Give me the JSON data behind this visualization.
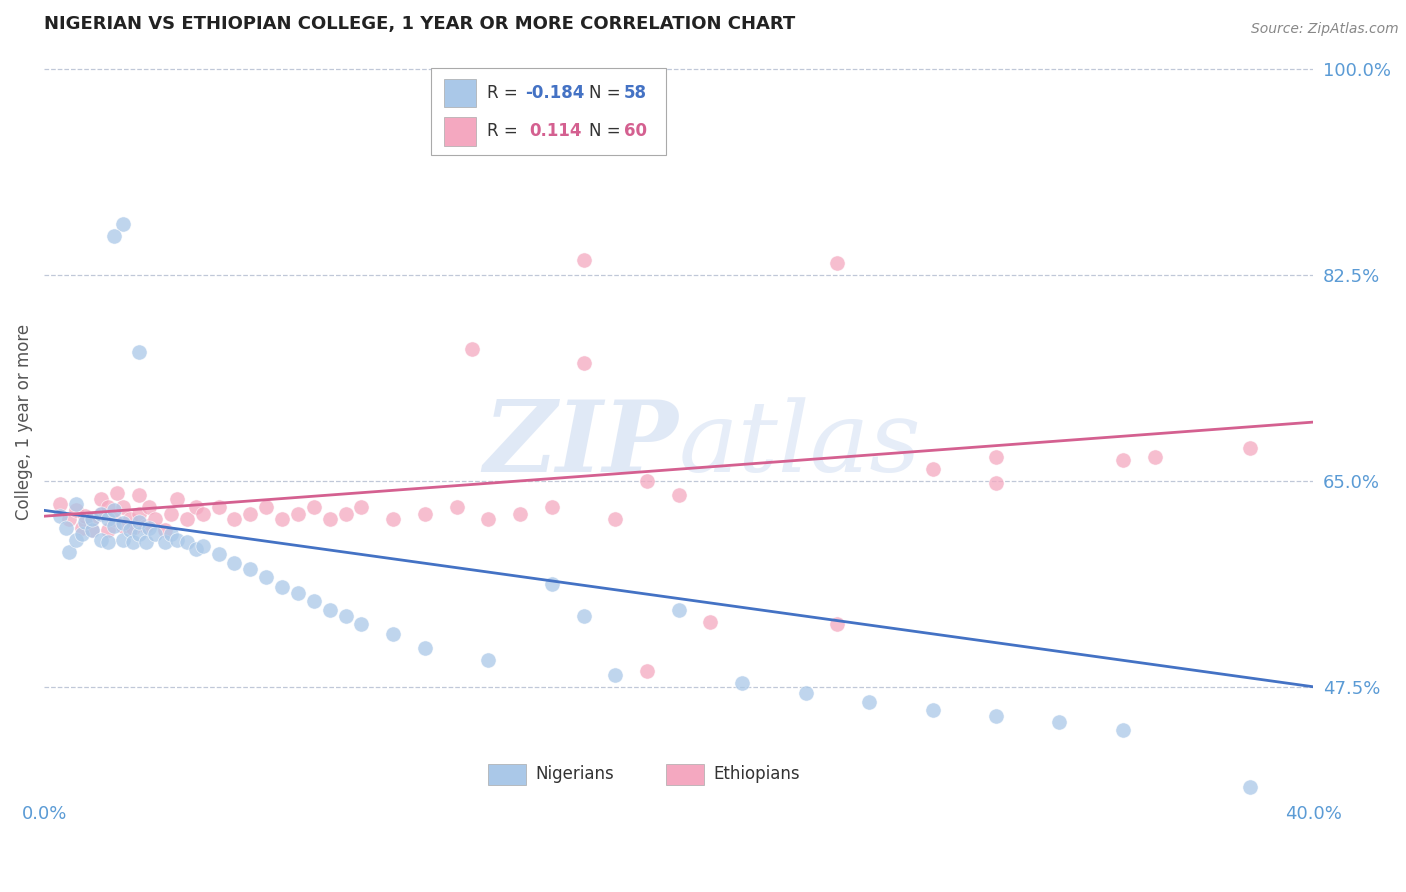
{
  "title": "NIGERIAN VS ETHIOPIAN COLLEGE, 1 YEAR OR MORE CORRELATION CHART",
  "source_text": "Source: ZipAtlas.com",
  "ylabel": "College, 1 year or more",
  "xlim": [
    0.0,
    0.4
  ],
  "ylim": [
    0.38,
    1.02
  ],
  "xtick_labels": [
    "0.0%",
    "40.0%"
  ],
  "ytick_positions": [
    1.0,
    0.825,
    0.65,
    0.475
  ],
  "ytick_labels": [
    "100.0%",
    "82.5%",
    "65.0%",
    "47.5%"
  ],
  "nigerian_color": "#aac8e8",
  "ethiopian_color": "#f4a8c0",
  "nigerian_line_color": "#4472c4",
  "ethiopian_line_color": "#d46090",
  "watermark": "ZIPatlas",
  "background_color": "#ffffff",
  "grid_color": "#c0c8d8",
  "nigerian_R": -0.184,
  "nigerian_N": 58,
  "ethiopian_R": 0.114,
  "ethiopian_N": 60,
  "legend_box_color": "#dddddd",
  "tick_color": "#5b9bd5",
  "nigerian_x": [
    0.005,
    0.007,
    0.008,
    0.01,
    0.01,
    0.012,
    0.013,
    0.015,
    0.015,
    0.018,
    0.018,
    0.02,
    0.02,
    0.022,
    0.022,
    0.025,
    0.025,
    0.027,
    0.028,
    0.03,
    0.03,
    0.032,
    0.033,
    0.035,
    0.038,
    0.04,
    0.042,
    0.045,
    0.048,
    0.05,
    0.055,
    0.06,
    0.065,
    0.07,
    0.075,
    0.08,
    0.085,
    0.09,
    0.095,
    0.1,
    0.11,
    0.12,
    0.14,
    0.16,
    0.18,
    0.2,
    0.22,
    0.24,
    0.26,
    0.28,
    0.3,
    0.32,
    0.34,
    0.17,
    0.38,
    0.025,
    0.022,
    0.03
  ],
  "nigerian_y": [
    0.62,
    0.61,
    0.59,
    0.6,
    0.63,
    0.605,
    0.615,
    0.608,
    0.618,
    0.6,
    0.622,
    0.618,
    0.598,
    0.612,
    0.625,
    0.6,
    0.614,
    0.608,
    0.598,
    0.605,
    0.615,
    0.598,
    0.61,
    0.605,
    0.598,
    0.605,
    0.6,
    0.598,
    0.592,
    0.595,
    0.588,
    0.58,
    0.575,
    0.568,
    0.56,
    0.555,
    0.548,
    0.54,
    0.535,
    0.528,
    0.52,
    0.508,
    0.498,
    0.562,
    0.485,
    0.54,
    0.478,
    0.47,
    0.462,
    0.455,
    0.45,
    0.445,
    0.438,
    0.535,
    0.39,
    0.868,
    0.858,
    0.76
  ],
  "ethiopian_x": [
    0.005,
    0.008,
    0.01,
    0.012,
    0.013,
    0.015,
    0.015,
    0.018,
    0.018,
    0.02,
    0.02,
    0.022,
    0.023,
    0.025,
    0.025,
    0.027,
    0.028,
    0.03,
    0.03,
    0.032,
    0.033,
    0.035,
    0.038,
    0.04,
    0.042,
    0.045,
    0.048,
    0.05,
    0.055,
    0.06,
    0.065,
    0.07,
    0.075,
    0.08,
    0.085,
    0.09,
    0.095,
    0.1,
    0.11,
    0.12,
    0.13,
    0.14,
    0.15,
    0.16,
    0.17,
    0.18,
    0.19,
    0.2,
    0.25,
    0.28,
    0.3,
    0.17,
    0.135,
    0.25,
    0.35,
    0.21,
    0.19,
    0.3,
    0.38,
    0.34
  ],
  "ethiopian_y": [
    0.63,
    0.618,
    0.625,
    0.61,
    0.62,
    0.618,
    0.608,
    0.622,
    0.635,
    0.608,
    0.628,
    0.618,
    0.64,
    0.612,
    0.628,
    0.618,
    0.61,
    0.622,
    0.638,
    0.612,
    0.628,
    0.618,
    0.608,
    0.622,
    0.635,
    0.618,
    0.628,
    0.622,
    0.628,
    0.618,
    0.622,
    0.628,
    0.618,
    0.622,
    0.628,
    0.618,
    0.622,
    0.628,
    0.618,
    0.622,
    0.628,
    0.618,
    0.622,
    0.628,
    0.75,
    0.618,
    0.65,
    0.638,
    0.528,
    0.66,
    0.648,
    0.838,
    0.762,
    0.835,
    0.67,
    0.53,
    0.488,
    0.67,
    0.678,
    0.668
  ]
}
